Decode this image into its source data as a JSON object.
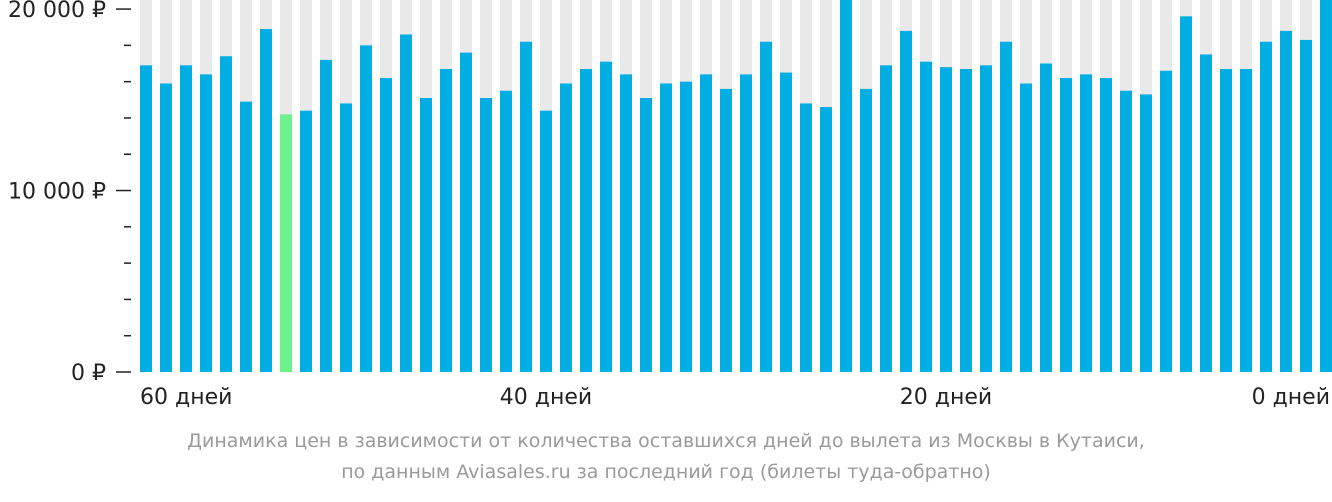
{
  "chart_data": {
    "type": "bar",
    "yticks": [
      {
        "value": 0,
        "label": "0 ₽"
      },
      {
        "value": 10000,
        "label": "10 000 ₽"
      },
      {
        "value": 20000,
        "label": "20 000 ₽"
      }
    ],
    "ylim": [
      0,
      20500
    ],
    "xticks": [
      {
        "day": 60,
        "label": "60 дней"
      },
      {
        "day": 40,
        "label": "40 дней"
      },
      {
        "day": 20,
        "label": "20 дней"
      },
      {
        "day": 0,
        "label": "0 дней"
      }
    ],
    "days": [
      60,
      59,
      58,
      57,
      56,
      55,
      54,
      53,
      52,
      51,
      50,
      49,
      48,
      47,
      46,
      45,
      44,
      43,
      42,
      41,
      40,
      39,
      38,
      37,
      36,
      35,
      34,
      33,
      32,
      31,
      30,
      29,
      28,
      27,
      26,
      25,
      24,
      23,
      22,
      21,
      20,
      19,
      18,
      17,
      16,
      15,
      14,
      13,
      12,
      11,
      10,
      9,
      8,
      7,
      6,
      5,
      4,
      3,
      2,
      1,
      0
    ],
    "values": [
      16900,
      15900,
      16900,
      16400,
      17400,
      14900,
      18900,
      14200,
      14400,
      17200,
      14800,
      18000,
      16200,
      18600,
      15100,
      16700,
      17600,
      15100,
      15500,
      18200,
      14400,
      15900,
      16700,
      17100,
      16400,
      15100,
      15900,
      16000,
      16400,
      15600,
      16400,
      18200,
      16500,
      14800,
      14600,
      20700,
      15600,
      16900,
      18800,
      17100,
      16800,
      16700,
      16900,
      18200,
      15900,
      17000,
      16200,
      16400,
      16200,
      15500,
      15300,
      16600,
      19600,
      17500,
      16700,
      16700,
      18200,
      18800,
      18300,
      20700,
      20000
    ],
    "highlight_color": "#6ef08a",
    "highlight_index": 7,
    "bar_color": "#00aee3",
    "background_bar_color": "#e9e9e9",
    "grid": false
  },
  "caption": {
    "line1": "Динамика цен в зависимости от количества оставшихся дней до вылета из Москвы в Кутаиси,",
    "line2": "по данным Aviasales.ru за последний год (билеты туда-обратно)"
  }
}
